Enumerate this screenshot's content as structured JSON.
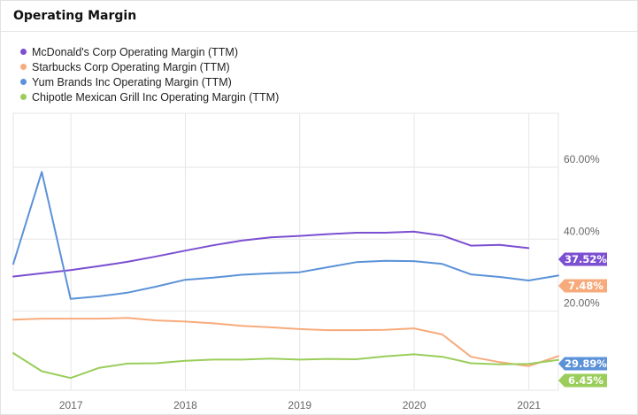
{
  "header": {
    "title": "Operating Margin"
  },
  "chart_data": {
    "type": "line",
    "y_range": [
      -0.02,
      0.75
    ],
    "x_range": [
      "2016-07-01",
      "2021-04-05"
    ],
    "x_ticks": [
      {
        "date": "2017-01-01",
        "label": "2017"
      },
      {
        "date": "2018-01-01",
        "label": "2018"
      },
      {
        "date": "2019-01-01",
        "label": "2019"
      },
      {
        "date": "2020-01-01",
        "label": "2020"
      },
      {
        "date": "2021-01-01",
        "label": "2021"
      }
    ],
    "y_ticks": [
      {
        "value": 0.2,
        "label": "20.00%"
      },
      {
        "value": 0.4,
        "label": "40.00%"
      },
      {
        "value": 0.6,
        "label": "60.00%"
      }
    ],
    "grid": true,
    "legend_position": "top-left",
    "series": [
      {
        "name": "McDonald's Corp Operating Margin (TTM)",
        "color": "#7b4fd1",
        "end_label": "37.52%",
        "x": [
          "2016-07-01",
          "2016-09-30",
          "2016-12-31",
          "2017-03-31",
          "2017-06-30",
          "2017-09-30",
          "2017-12-31",
          "2018-03-31",
          "2018-06-30",
          "2018-09-30",
          "2018-12-31",
          "2019-03-31",
          "2019-06-30",
          "2019-09-30",
          "2019-12-31",
          "2020-03-31",
          "2020-06-30",
          "2020-09-30",
          "2020-12-31"
        ],
        "y": [
          0.296,
          0.305,
          0.314,
          0.325,
          0.337,
          0.352,
          0.368,
          0.383,
          0.396,
          0.405,
          0.409,
          0.414,
          0.418,
          0.418,
          0.421,
          0.41,
          0.382,
          0.384,
          0.375
        ]
      },
      {
        "name": "Starbucks Corp Operating Margin (TTM)",
        "color": "#f7ab7c",
        "end_label": "7.48%",
        "x": [
          "2016-07-01",
          "2016-09-30",
          "2016-12-31",
          "2017-03-31",
          "2017-06-30",
          "2017-09-30",
          "2017-12-31",
          "2018-03-31",
          "2018-06-30",
          "2018-09-30",
          "2018-12-31",
          "2019-03-31",
          "2019-06-30",
          "2019-09-30",
          "2019-12-31",
          "2020-03-31",
          "2020-06-30",
          "2020-09-30",
          "2020-12-31",
          "2021-04-05"
        ],
        "y": [
          0.176,
          0.179,
          0.179,
          0.179,
          0.181,
          0.174,
          0.171,
          0.166,
          0.159,
          0.155,
          0.15,
          0.147,
          0.147,
          0.148,
          0.152,
          0.135,
          0.073,
          0.058,
          0.047,
          0.0748
        ]
      },
      {
        "name": "Yum Brands Inc Operating Margin (TTM)",
        "color": "#5b92d8",
        "end_label": "29.89%",
        "x": [
          "2016-07-01",
          "2016-09-30",
          "2016-12-31",
          "2017-03-31",
          "2017-06-30",
          "2017-09-30",
          "2017-12-31",
          "2018-03-31",
          "2018-06-30",
          "2018-09-30",
          "2018-12-31",
          "2019-03-31",
          "2019-06-30",
          "2019-09-30",
          "2019-12-31",
          "2020-03-31",
          "2020-06-30",
          "2020-09-30",
          "2020-12-31",
          "2021-04-05"
        ],
        "y": [
          0.331,
          0.587,
          0.234,
          0.241,
          0.251,
          0.268,
          0.287,
          0.293,
          0.301,
          0.305,
          0.308,
          0.322,
          0.336,
          0.34,
          0.339,
          0.331,
          0.302,
          0.295,
          0.285,
          0.2989
        ]
      },
      {
        "name": "Chipotle Mexican Grill Inc Operating Margin (TTM)",
        "color": "#9acd5a",
        "end_label": "6.45%",
        "x": [
          "2016-07-01",
          "2016-09-30",
          "2016-12-31",
          "2017-03-31",
          "2017-06-30",
          "2017-09-30",
          "2017-12-31",
          "2018-03-31",
          "2018-06-30",
          "2018-09-30",
          "2018-12-31",
          "2019-03-31",
          "2019-06-30",
          "2019-09-30",
          "2019-12-31",
          "2020-03-31",
          "2020-06-30",
          "2020-09-30",
          "2020-12-31",
          "2021-04-05"
        ],
        "y": [
          0.083,
          0.033,
          0.014,
          0.042,
          0.054,
          0.055,
          0.062,
          0.065,
          0.065,
          0.068,
          0.065,
          0.067,
          0.066,
          0.074,
          0.08,
          0.073,
          0.055,
          0.052,
          0.053,
          0.0645
        ]
      }
    ]
  }
}
